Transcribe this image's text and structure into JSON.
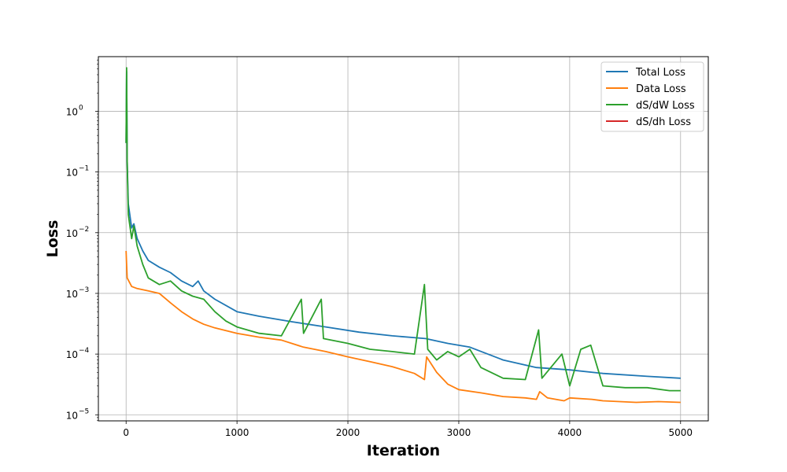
{
  "chart_data": {
    "type": "line",
    "title": "",
    "xlabel": "Iteration",
    "ylabel": "Loss",
    "xlim": [
      -250,
      5250
    ],
    "ylim_log10": [
      -5.1,
      0.9
    ],
    "yscale": "log",
    "grid": true,
    "legend_position": "top-right",
    "x_ticks": [
      0,
      1000,
      2000,
      3000,
      4000,
      5000
    ],
    "x_tick_labels": [
      "0",
      "1000",
      "2000",
      "3000",
      "4000",
      "5000"
    ],
    "y_tick_exponents": [
      0,
      -1,
      -2,
      -3,
      -4,
      -5
    ],
    "y_tick_base": "10",
    "series": [
      {
        "name": "Total Loss",
        "color": "#1f77b4",
        "points": [
          [
            0,
            0.3
          ],
          [
            5,
            4.5
          ],
          [
            10,
            0.15
          ],
          [
            20,
            0.03
          ],
          [
            50,
            0.012
          ],
          [
            70,
            0.014
          ],
          [
            100,
            0.008
          ],
          [
            150,
            0.005
          ],
          [
            200,
            0.0035
          ],
          [
            300,
            0.0027
          ],
          [
            400,
            0.0022
          ],
          [
            500,
            0.0016
          ],
          [
            600,
            0.0013
          ],
          [
            650,
            0.0016
          ],
          [
            700,
            0.0011
          ],
          [
            800,
            0.0008
          ],
          [
            1000,
            0.0005
          ],
          [
            1200,
            0.00042
          ],
          [
            1500,
            0.00034
          ],
          [
            1800,
            0.00028
          ],
          [
            2100,
            0.00023
          ],
          [
            2400,
            0.0002
          ],
          [
            2700,
            0.00018
          ],
          [
            2900,
            0.00015
          ],
          [
            3100,
            0.00013
          ],
          [
            3400,
            8e-05
          ],
          [
            3700,
            6e-05
          ],
          [
            4000,
            5.5e-05
          ],
          [
            4300,
            4.8e-05
          ],
          [
            4700,
            4.3e-05
          ],
          [
            5000,
            4e-05
          ]
        ]
      },
      {
        "name": "Data Loss",
        "color": "#ff7f0e",
        "points": [
          [
            0,
            0.005
          ],
          [
            10,
            0.0018
          ],
          [
            50,
            0.0013
          ],
          [
            100,
            0.0012
          ],
          [
            200,
            0.0011
          ],
          [
            300,
            0.001
          ],
          [
            400,
            0.0007
          ],
          [
            500,
            0.0005
          ],
          [
            600,
            0.00038
          ],
          [
            700,
            0.00031
          ],
          [
            800,
            0.00027
          ],
          [
            1000,
            0.00022
          ],
          [
            1200,
            0.00019
          ],
          [
            1400,
            0.00017
          ],
          [
            1600,
            0.00013
          ],
          [
            1800,
            0.00011
          ],
          [
            2000,
            9e-05
          ],
          [
            2200,
            7.5e-05
          ],
          [
            2400,
            6.2e-05
          ],
          [
            2600,
            4.8e-05
          ],
          [
            2690,
            3.8e-05
          ],
          [
            2710,
            9e-05
          ],
          [
            2800,
            5e-05
          ],
          [
            2900,
            3.2e-05
          ],
          [
            3000,
            2.6e-05
          ],
          [
            3200,
            2.3e-05
          ],
          [
            3400,
            2e-05
          ],
          [
            3600,
            1.9e-05
          ],
          [
            3700,
            1.8e-05
          ],
          [
            3730,
            2.4e-05
          ],
          [
            3800,
            1.9e-05
          ],
          [
            3950,
            1.7e-05
          ],
          [
            4000,
            1.9e-05
          ],
          [
            4200,
            1.8e-05
          ],
          [
            4300,
            1.7e-05
          ],
          [
            4600,
            1.6e-05
          ],
          [
            4800,
            1.65e-05
          ],
          [
            5000,
            1.6e-05
          ]
        ]
      },
      {
        "name": "dS/dW Loss",
        "color": "#2ca02c",
        "points": [
          [
            0,
            0.3
          ],
          [
            5,
            5.2
          ],
          [
            10,
            0.15
          ],
          [
            20,
            0.02
          ],
          [
            50,
            0.008
          ],
          [
            70,
            0.013
          ],
          [
            100,
            0.006
          ],
          [
            150,
            0.003
          ],
          [
            200,
            0.0018
          ],
          [
            300,
            0.0014
          ],
          [
            400,
            0.0016
          ],
          [
            500,
            0.0011
          ],
          [
            600,
            0.0009
          ],
          [
            700,
            0.0008
          ],
          [
            800,
            0.0005
          ],
          [
            900,
            0.00035
          ],
          [
            1000,
            0.00028
          ],
          [
            1200,
            0.00022
          ],
          [
            1400,
            0.0002
          ],
          [
            1580,
            0.0008
          ],
          [
            1600,
            0.00022
          ],
          [
            1760,
            0.0008
          ],
          [
            1780,
            0.00018
          ],
          [
            2000,
            0.00015
          ],
          [
            2200,
            0.00012
          ],
          [
            2400,
            0.00011
          ],
          [
            2600,
            0.0001
          ],
          [
            2690,
            0.0014
          ],
          [
            2720,
            0.00012
          ],
          [
            2800,
            8e-05
          ],
          [
            2900,
            0.00011
          ],
          [
            3000,
            9e-05
          ],
          [
            3100,
            0.00012
          ],
          [
            3200,
            6e-05
          ],
          [
            3400,
            4e-05
          ],
          [
            3600,
            3.8e-05
          ],
          [
            3720,
            0.00025
          ],
          [
            3750,
            4e-05
          ],
          [
            3930,
            0.0001
          ],
          [
            4000,
            3e-05
          ],
          [
            4100,
            0.00012
          ],
          [
            4190,
            0.00014
          ],
          [
            4300,
            3e-05
          ],
          [
            4500,
            2.8e-05
          ],
          [
            4700,
            2.8e-05
          ],
          [
            4900,
            2.5e-05
          ],
          [
            5000,
            2.5e-05
          ]
        ]
      },
      {
        "name": "dS/dh Loss",
        "color": "#d62728",
        "points": []
      }
    ]
  }
}
